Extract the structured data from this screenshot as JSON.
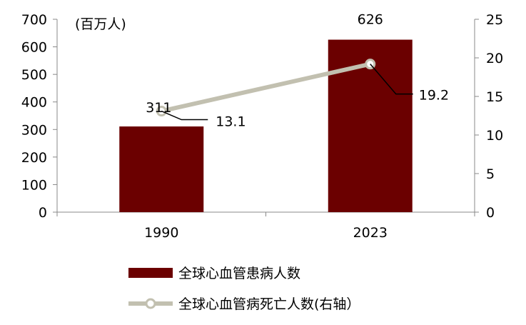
{
  "chart_data": {
    "type": "bar",
    "categories": [
      "1990",
      "2023"
    ],
    "unit_label": "(百万人)",
    "y_left": {
      "min": 0,
      "max": 700,
      "ticks": [
        0,
        100,
        200,
        300,
        400,
        500,
        600,
        700
      ]
    },
    "y_right": {
      "min": 0,
      "max": 25,
      "ticks": [
        0,
        5,
        10,
        15,
        20,
        25
      ]
    },
    "grid": false,
    "legend_position": "bottom",
    "series": [
      {
        "name": "全球心血管患病人数",
        "type": "bar",
        "axis": "left",
        "color": "#6b0000",
        "values": [
          311,
          626
        ],
        "labels": [
          "311",
          "626"
        ]
      },
      {
        "name": "全球心血管病死亡人数(右轴）",
        "type": "line",
        "axis": "right",
        "color": "#c2c0b0",
        "marker": "hollow-circle",
        "values": [
          13.1,
          19.2
        ],
        "labels": [
          "13.1",
          "19.2"
        ]
      }
    ]
  }
}
